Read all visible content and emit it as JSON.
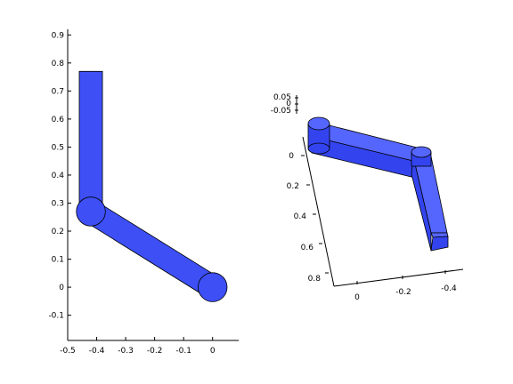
{
  "chart_data": [
    {
      "type": "planar-arm-2d",
      "title": "",
      "xlabel": "",
      "ylabel": "",
      "xlim": [
        -0.5,
        0.09
      ],
      "ylim": [
        -0.19,
        0.92
      ],
      "x_ticks": [
        -0.5,
        -0.4,
        -0.3,
        -0.2,
        -0.1,
        0
      ],
      "x_tick_labels": [
        "-0.5",
        "-0.4",
        "-0.3",
        "-0.2",
        "-0.1",
        "0"
      ],
      "y_ticks": [
        -0.1,
        0,
        0.1,
        0.2,
        0.3,
        0.4,
        0.5,
        0.6,
        0.7,
        0.8,
        0.9
      ],
      "y_tick_labels": [
        "-0.1",
        "0",
        "0.1",
        "0.2",
        "0.3",
        "0.4",
        "0.5",
        "0.6",
        "0.7",
        "0.8",
        "0.9"
      ],
      "grid": false,
      "links": [
        {
          "name": "link-1",
          "from": [
            0,
            0
          ],
          "to": [
            -0.42,
            0.27
          ]
        },
        {
          "name": "link-2",
          "from": [
            -0.42,
            0.27
          ],
          "to": [
            -0.42,
            0.77
          ]
        }
      ],
      "joints": [
        {
          "name": "base-joint",
          "at": [
            0,
            0
          ]
        },
        {
          "name": "elbow-joint",
          "at": [
            -0.42,
            0.27
          ]
        }
      ],
      "color": "#3d4ff5"
    },
    {
      "type": "planar-arm-3d-view",
      "title": "",
      "x_tick_labels": [
        "0",
        "-0.2",
        "-0.4"
      ],
      "y_tick_labels": [
        "0",
        "0.2",
        "0.4",
        "0.6",
        "0.8"
      ],
      "z_tick_labels": [
        "0.05",
        "0",
        "-0.05"
      ],
      "grid": false,
      "color": "#3d4ff5"
    }
  ]
}
